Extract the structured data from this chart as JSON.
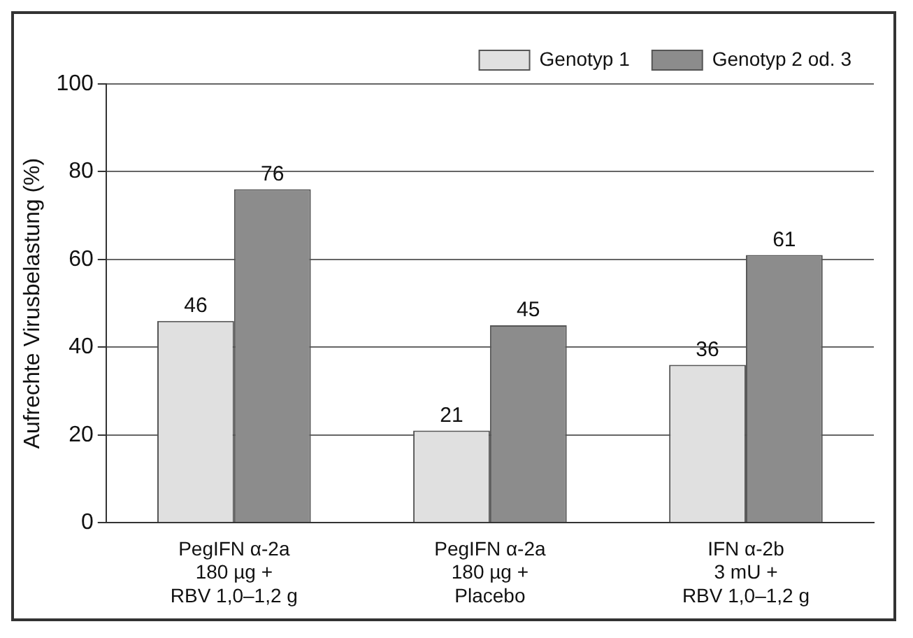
{
  "chart_data": {
    "type": "bar",
    "ylabel": "Aufrechte Virusbelastung (%)",
    "categories": [
      "PegIFN α-2a\n180 µg +\nRBV 1,0–1,2 g",
      "PegIFN α-2a\n180 µg +\nPlacebo",
      "IFN α-2b\n3 mU +\nRBV 1,0–1,2 g"
    ],
    "series": [
      {
        "name": "Genotyp 1",
        "color": "#e0e0e0",
        "values": [
          46,
          21,
          36
        ]
      },
      {
        "name": "Genotyp 2 od. 3",
        "color": "#8c8c8c",
        "values": [
          76,
          45,
          61
        ]
      }
    ],
    "ylim": [
      0,
      100
    ],
    "yticks": [
      0,
      20,
      40,
      60,
      80,
      100
    ],
    "grid": "y",
    "legend": "top right",
    "data_labels": true
  }
}
